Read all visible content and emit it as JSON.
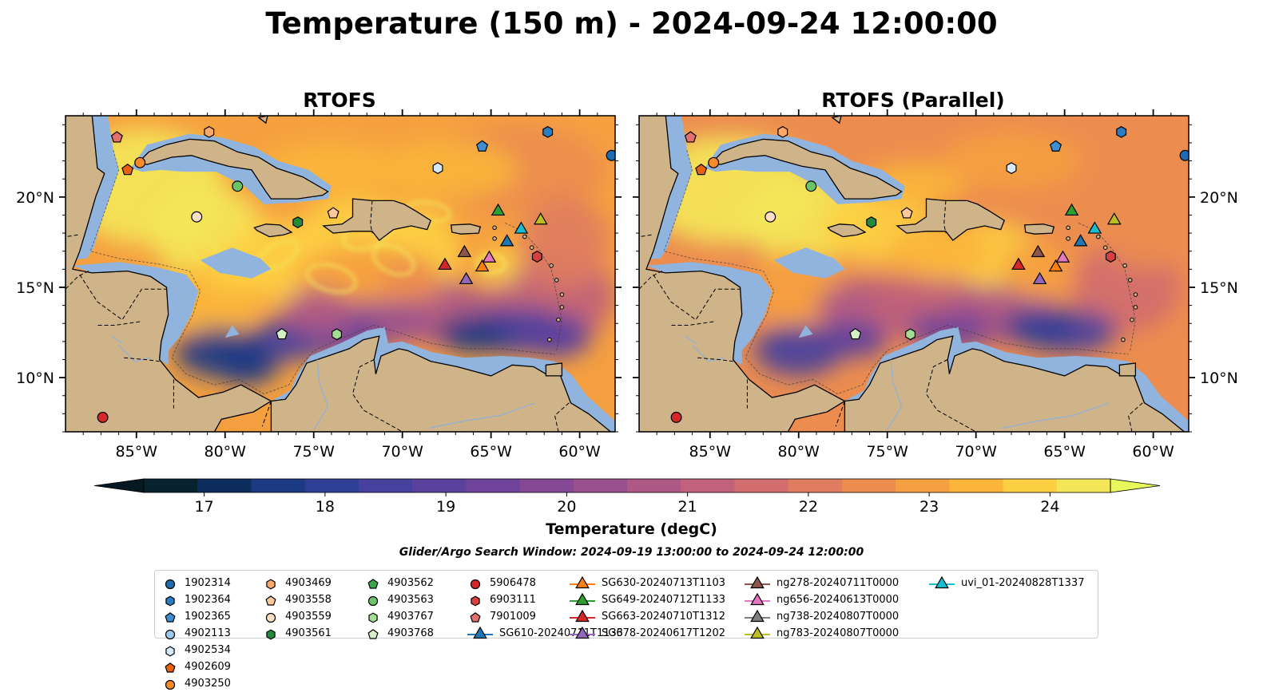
{
  "title": "Temperature (150 m) - 2024-09-24 12:00:00",
  "panels": [
    {
      "title": "RTOFS",
      "variant": "main"
    },
    {
      "title": "RTOFS (Parallel)",
      "variant": "parallel"
    }
  ],
  "map_extent": {
    "lon": [
      -89,
      -58
    ],
    "lat": [
      7,
      24.5
    ]
  },
  "lon_ticks": [
    {
      "value": -85,
      "label": "85°W"
    },
    {
      "value": -80,
      "label": "80°W"
    },
    {
      "value": -75,
      "label": "75°W"
    },
    {
      "value": -70,
      "label": "70°W"
    },
    {
      "value": -65,
      "label": "65°W"
    },
    {
      "value": -60,
      "label": "60°W"
    }
  ],
  "lat_ticks": [
    {
      "value": 10,
      "label": "10°N"
    },
    {
      "value": 15,
      "label": "15°N"
    },
    {
      "value": 20,
      "label": "20°N"
    }
  ],
  "colorbar": {
    "label": "Temperature (degC)",
    "min": 16.5,
    "max": 24.5,
    "ticks": [
      "17",
      "18",
      "19",
      "20",
      "21",
      "22",
      "23",
      "24"
    ],
    "colors": [
      "#08222e",
      "#0d2d5c",
      "#1c3a84",
      "#2f3f95",
      "#45419d",
      "#5a419e",
      "#6f439a",
      "#844895",
      "#99508e",
      "#ad5885",
      "#c0627a",
      "#d16e6d",
      "#e07d5e",
      "#ec8d4f",
      "#f5a040",
      "#fbb53a",
      "#fdcf42",
      "#f4e659"
    ],
    "extend_low": "#061922",
    "extend_high": "#e8f85a"
  },
  "colors": {
    "ocean_shelf": "#91b4df",
    "land": "#cfb48a",
    "deep_ocean": "#08222e"
  },
  "search_window": "Glider/Argo Search Window: 2024-09-19 13:00:00 to 2024-09-24 12:00:00",
  "legend": [
    {
      "label": "1902314",
      "marker": "circle",
      "color": "#1f6db0"
    },
    {
      "label": "1902364",
      "marker": "hexagon",
      "color": "#2c7cc1"
    },
    {
      "label": "1902365",
      "marker": "pentagon",
      "color": "#3e8fd1"
    },
    {
      "label": "4902113",
      "marker": "circle",
      "color": "#9ec9ea"
    },
    {
      "label": "4902534",
      "marker": "hexagon",
      "color": "#d6e9f8"
    },
    {
      "label": "4902609",
      "marker": "pentagon",
      "color": "#e6620b"
    },
    {
      "label": "4903250",
      "marker": "circle",
      "color": "#f68b2c"
    },
    {
      "label": "4903469",
      "marker": "hexagon",
      "color": "#fba868"
    },
    {
      "label": "4903558",
      "marker": "pentagon",
      "color": "#fdc99a"
    },
    {
      "label": "4903559",
      "marker": "circle",
      "color": "#fde0c4"
    },
    {
      "label": "4903561",
      "marker": "hexagon",
      "color": "#238a3b"
    },
    {
      "label": "4903562",
      "marker": "pentagon",
      "color": "#39a84a"
    },
    {
      "label": "4903563",
      "marker": "circle",
      "color": "#6cc46a"
    },
    {
      "label": "4903767",
      "marker": "hexagon",
      "color": "#a5dc95"
    },
    {
      "label": "4903768",
      "marker": "pentagon",
      "color": "#d4f0c4"
    },
    {
      "label": "5906478",
      "marker": "circle",
      "color": "#d62728"
    },
    {
      "label": "6903111",
      "marker": "hexagon",
      "color": "#d84040"
    },
    {
      "label": "7901009",
      "marker": "pentagon",
      "color": "#e36f6f"
    },
    {
      "label": "SG610-20240711T1133",
      "marker": "triangle-line",
      "color": "#1f77b4"
    },
    {
      "label": "SG630-20240713T1103",
      "marker": "triangle-line",
      "color": "#ff7f0e"
    },
    {
      "label": "SG649-20240712T1133",
      "marker": "triangle-line",
      "color": "#2ca02c"
    },
    {
      "label": "SG663-20240710T1312",
      "marker": "triangle-line",
      "color": "#d62728"
    },
    {
      "label": "SG678-20240617T1202",
      "marker": "triangle-line",
      "color": "#9467bd"
    },
    {
      "label": "ng278-20240711T0000",
      "marker": "triangle-line",
      "color": "#8c564b"
    },
    {
      "label": "ng656-20240613T0000",
      "marker": "triangle-line",
      "color": "#e377c2"
    },
    {
      "label": "ng738-20240807T0000",
      "marker": "triangle-line",
      "color": "#7f7f7f"
    },
    {
      "label": "ng783-20240807T0000",
      "marker": "triangle-line",
      "color": "#bcbd22"
    },
    {
      "label": "uvi_01-20240828T1337",
      "marker": "triangle-line",
      "color": "#17becf"
    }
  ],
  "observations": [
    {
      "id": "1902314",
      "lon": -58.2,
      "lat": 22.3
    },
    {
      "id": "1902364",
      "lon": -61.8,
      "lat": 23.6
    },
    {
      "id": "1902365",
      "lon": -65.5,
      "lat": 22.8
    },
    {
      "id": "4902534",
      "lon": -68.0,
      "lat": 21.6
    },
    {
      "id": "4902609",
      "lon": -85.5,
      "lat": 21.5
    },
    {
      "id": "4903250",
      "lon": -84.8,
      "lat": 21.9
    },
    {
      "id": "4903469",
      "lon": -80.9,
      "lat": 23.6
    },
    {
      "id": "7901009",
      "lon": -86.1,
      "lat": 23.3
    },
    {
      "id": "4903563",
      "lon": -79.3,
      "lat": 20.6
    },
    {
      "id": "4903559",
      "lon": -81.6,
      "lat": 18.9
    },
    {
      "id": "4903561",
      "lon": -75.9,
      "lat": 18.6
    },
    {
      "id": "4903558",
      "lon": -73.9,
      "lat": 19.1
    },
    {
      "id": "4903768",
      "lon": -76.8,
      "lat": 12.4
    },
    {
      "id": "4903767",
      "lon": -73.7,
      "lat": 12.4
    },
    {
      "id": "5906478",
      "lon": -86.9,
      "lat": 7.8
    },
    {
      "id": "6903111",
      "lon": -62.4,
      "lat": 16.7
    },
    {
      "id": "SG649-20240712T1133",
      "lon": -64.6,
      "lat": 19.2
    },
    {
      "id": "SG663-20240710T1312",
      "lon": -67.6,
      "lat": 16.2
    },
    {
      "id": "ng278-20240711T0000",
      "lon": -66.5,
      "lat": 16.9
    },
    {
      "id": "SG678-20240617T1202",
      "lon": -66.4,
      "lat": 15.4
    },
    {
      "id": "SG630-20240713T1103",
      "lon": -65.5,
      "lat": 16.1
    },
    {
      "id": "ng656-20240613T0000",
      "lon": -65.1,
      "lat": 16.6
    },
    {
      "id": "SG610-20240711T1133",
      "lon": -64.1,
      "lat": 17.5
    },
    {
      "id": "uvi_01-20240828T1337",
      "lon": -63.3,
      "lat": 18.2
    },
    {
      "id": "ng783-20240807T0000",
      "lon": -62.2,
      "lat": 18.7
    }
  ]
}
